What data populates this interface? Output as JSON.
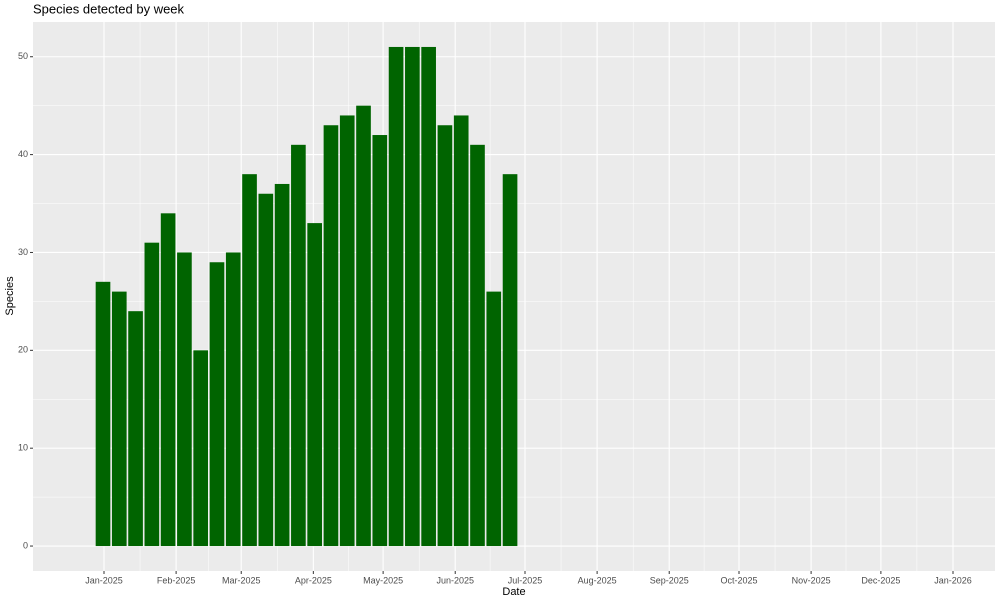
{
  "chart_data": {
    "type": "bar",
    "title": "Species detected by week",
    "xlabel": "Date",
    "ylabel": "Species",
    "categories": [
      null,
      null,
      null,
      null,
      null,
      null,
      null,
      null,
      null,
      null,
      null,
      null,
      null,
      null,
      null,
      null,
      null,
      null,
      null,
      null,
      null,
      null,
      null,
      null,
      null,
      null
    ],
    "values": [
      27,
      26,
      24,
      31,
      34,
      30,
      20,
      29,
      30,
      38,
      36,
      37,
      41,
      33,
      43,
      44,
      45,
      42,
      51,
      51,
      51,
      43,
      44,
      41,
      26,
      38
    ],
    "color": "#006400",
    "ylim": [
      -2.55,
      53.55
    ],
    "yticks": [
      0,
      10,
      20,
      30,
      40,
      50
    ],
    "xticks": [
      {
        "value": "2025-01",
        "label": "Jan-2025"
      },
      {
        "value": "2025-02",
        "label": "Feb-2025"
      },
      {
        "value": "2025-03",
        "label": "Mar-2025"
      },
      {
        "value": "2025-04",
        "label": "Apr-2025"
      },
      {
        "value": "2025-05",
        "label": "May-2025"
      },
      {
        "value": "2025-06",
        "label": "Jun-2025"
      },
      {
        "value": "2025-07",
        "label": "Jul-2025"
      },
      {
        "value": "2025-08",
        "label": "Aug-2025"
      },
      {
        "value": "2025-09",
        "label": "Sep-2025"
      },
      {
        "value": "2025-10",
        "label": "Oct-2025"
      },
      {
        "value": "2025-11",
        "label": "Nov-2025"
      },
      {
        "value": "2025-12",
        "label": "Dec-2025"
      },
      {
        "value": "2026-01",
        "label": "Jan-2026"
      }
    ],
    "grid": true
  }
}
